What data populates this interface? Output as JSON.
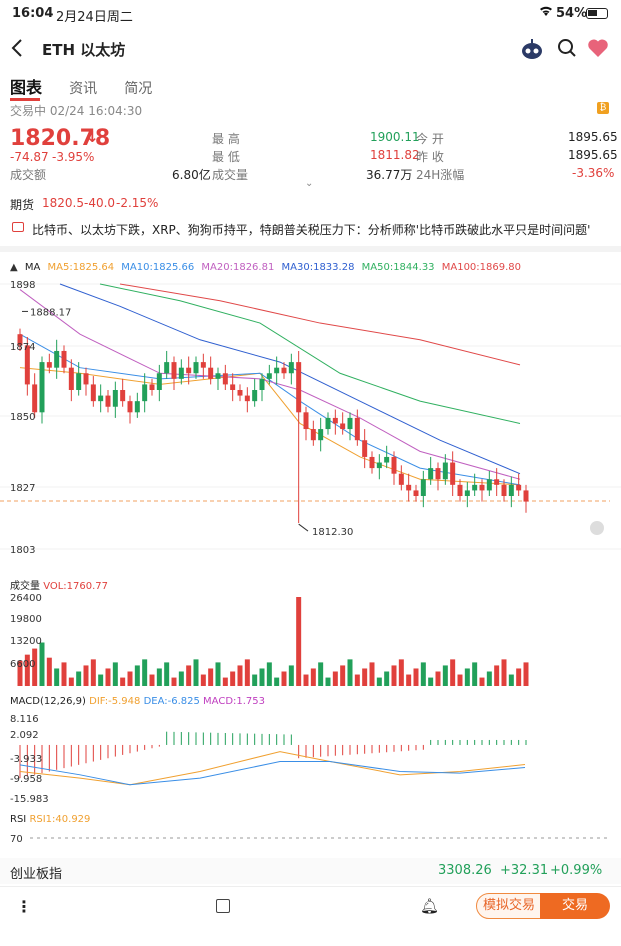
{
  "status_bar": {
    "time": "16:04",
    "date": "2月24日周二",
    "battery": "54%"
  },
  "nav": {
    "title": "ETH 以太坊"
  },
  "tabs": [
    {
      "label": "图表",
      "active": true
    },
    {
      "label": "资讯"
    },
    {
      "label": "简况"
    }
  ],
  "quote": {
    "status": "交易中 02/24 16:04:30",
    "price": "1820.78",
    "arrow": "↓",
    "change": "-74.87",
    "change_pct": "-3.95%",
    "turnover_label": "成交额",
    "turnover": "6.80亿",
    "high_label": "最 高",
    "high": "1900.11",
    "low_label": "最 低",
    "low": "1811.82",
    "volume_label": "成交量",
    "volume": "36.77万",
    "open_label": "今 开",
    "open": "1895.65",
    "prev_label": "昨 收",
    "prev": "1895.65",
    "change24_label": "24H涨幅",
    "change24": "-3.36%"
  },
  "futures": {
    "label": "期货",
    "price": "1820.5",
    "change": "-40.0",
    "pct": "-2.15%"
  },
  "news": {
    "text": "比特币、以太坊下跌，XRP、狗狗币持平，特朗普关税压力下：分析师称'比特币跌破此水平只是时间问题'"
  },
  "ma_legend": {
    "title": "MA",
    "items": [
      {
        "label": "MA5:1825.64",
        "color": "#f0a030"
      },
      {
        "label": "MA10:1825.66",
        "color": "#3a8ee6"
      },
      {
        "label": "MA20:1826.81",
        "color": "#c060c0"
      },
      {
        "label": "MA30:1833.28",
        "color": "#3060d0"
      },
      {
        "label": "MA50:1844.33",
        "color": "#30b060"
      },
      {
        "label": "MA100:1869.80",
        "color": "#e04848"
      }
    ]
  },
  "chart_data": {
    "type": "candlestick",
    "y_ticks": [
      "1898",
      "1874",
      "1850",
      "1827",
      "1803"
    ],
    "max_label": "1888.17",
    "min_label": "1812.30",
    "volume": {
      "title": "成交量",
      "value": "VOL:1760.77",
      "ticks": [
        "26400",
        "19800",
        "13200",
        "6600"
      ]
    },
    "macd": {
      "title": "MACD(12,26,9)",
      "dif": "DIF:-5.948",
      "dea": "DEA:-6.825",
      "macd": "MACD:1.753",
      "ticks": [
        "8.116",
        "2.092",
        "-3.933",
        "-9.958",
        "-15.983"
      ]
    },
    "rsi": {
      "title": "RSI",
      "value": "RSI1:40.929",
      "tick": "70"
    }
  },
  "bottom_index": {
    "name": "创业板指",
    "value": "3308.26",
    "change": "+32.31",
    "pct": "+0.99%"
  },
  "actions": {
    "simulate": "模拟交易",
    "trade": "交易"
  }
}
